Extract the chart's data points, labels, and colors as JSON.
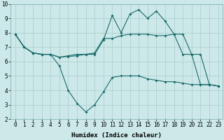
{
  "xlabel": "Humidex (Indice chaleur)",
  "xlim": [
    -0.5,
    23.5
  ],
  "ylim": [
    2,
    10
  ],
  "yticks": [
    2,
    3,
    4,
    5,
    6,
    7,
    8,
    9,
    10
  ],
  "xticks": [
    0,
    1,
    2,
    3,
    4,
    5,
    6,
    7,
    8,
    9,
    10,
    11,
    12,
    13,
    14,
    15,
    16,
    17,
    18,
    19,
    20,
    21,
    22,
    23
  ],
  "bg_color": "#cce8e8",
  "grid_color": "#aacccc",
  "line_color": "#1a6b6b",
  "line1_x": [
    0,
    1,
    2,
    3,
    4,
    5,
    6,
    7,
    8,
    9,
    10,
    11,
    12,
    13,
    14,
    15,
    16,
    17,
    18,
    19,
    20,
    21,
    22,
    23
  ],
  "line1_y": [
    7.9,
    7.0,
    6.6,
    6.5,
    6.5,
    5.7,
    4.0,
    3.1,
    2.5,
    3.0,
    3.9,
    4.9,
    5.0,
    5.0,
    5.0,
    4.8,
    4.7,
    4.6,
    4.6,
    4.5,
    4.4,
    4.4,
    4.4,
    4.3
  ],
  "line2_x": [
    0,
    1,
    2,
    3,
    4,
    5,
    6,
    7,
    8,
    9,
    10,
    11,
    12,
    13,
    14,
    15,
    16,
    17,
    18,
    19,
    20,
    21,
    22,
    23
  ],
  "line2_y": [
    7.9,
    7.0,
    6.6,
    6.5,
    6.5,
    6.3,
    6.4,
    6.5,
    6.5,
    6.6,
    7.6,
    7.6,
    7.8,
    7.9,
    7.9,
    7.9,
    7.8,
    7.8,
    7.9,
    7.9,
    6.5,
    6.5,
    4.4,
    4.3
  ],
  "line3_x": [
    0,
    1,
    2,
    3,
    4,
    5,
    6,
    7,
    8,
    9,
    10,
    11,
    12,
    13,
    14,
    15,
    16,
    17,
    18,
    19,
    20,
    21,
    22,
    23
  ],
  "line3_y": [
    7.9,
    7.0,
    6.6,
    6.5,
    6.5,
    6.3,
    6.35,
    6.4,
    6.5,
    6.5,
    7.5,
    9.2,
    8.0,
    9.3,
    9.6,
    9.0,
    9.5,
    8.8,
    7.9,
    6.5,
    6.5,
    4.4,
    4.4,
    4.3
  ],
  "tick_fontsize": 5.5,
  "xlabel_fontsize": 6.5
}
